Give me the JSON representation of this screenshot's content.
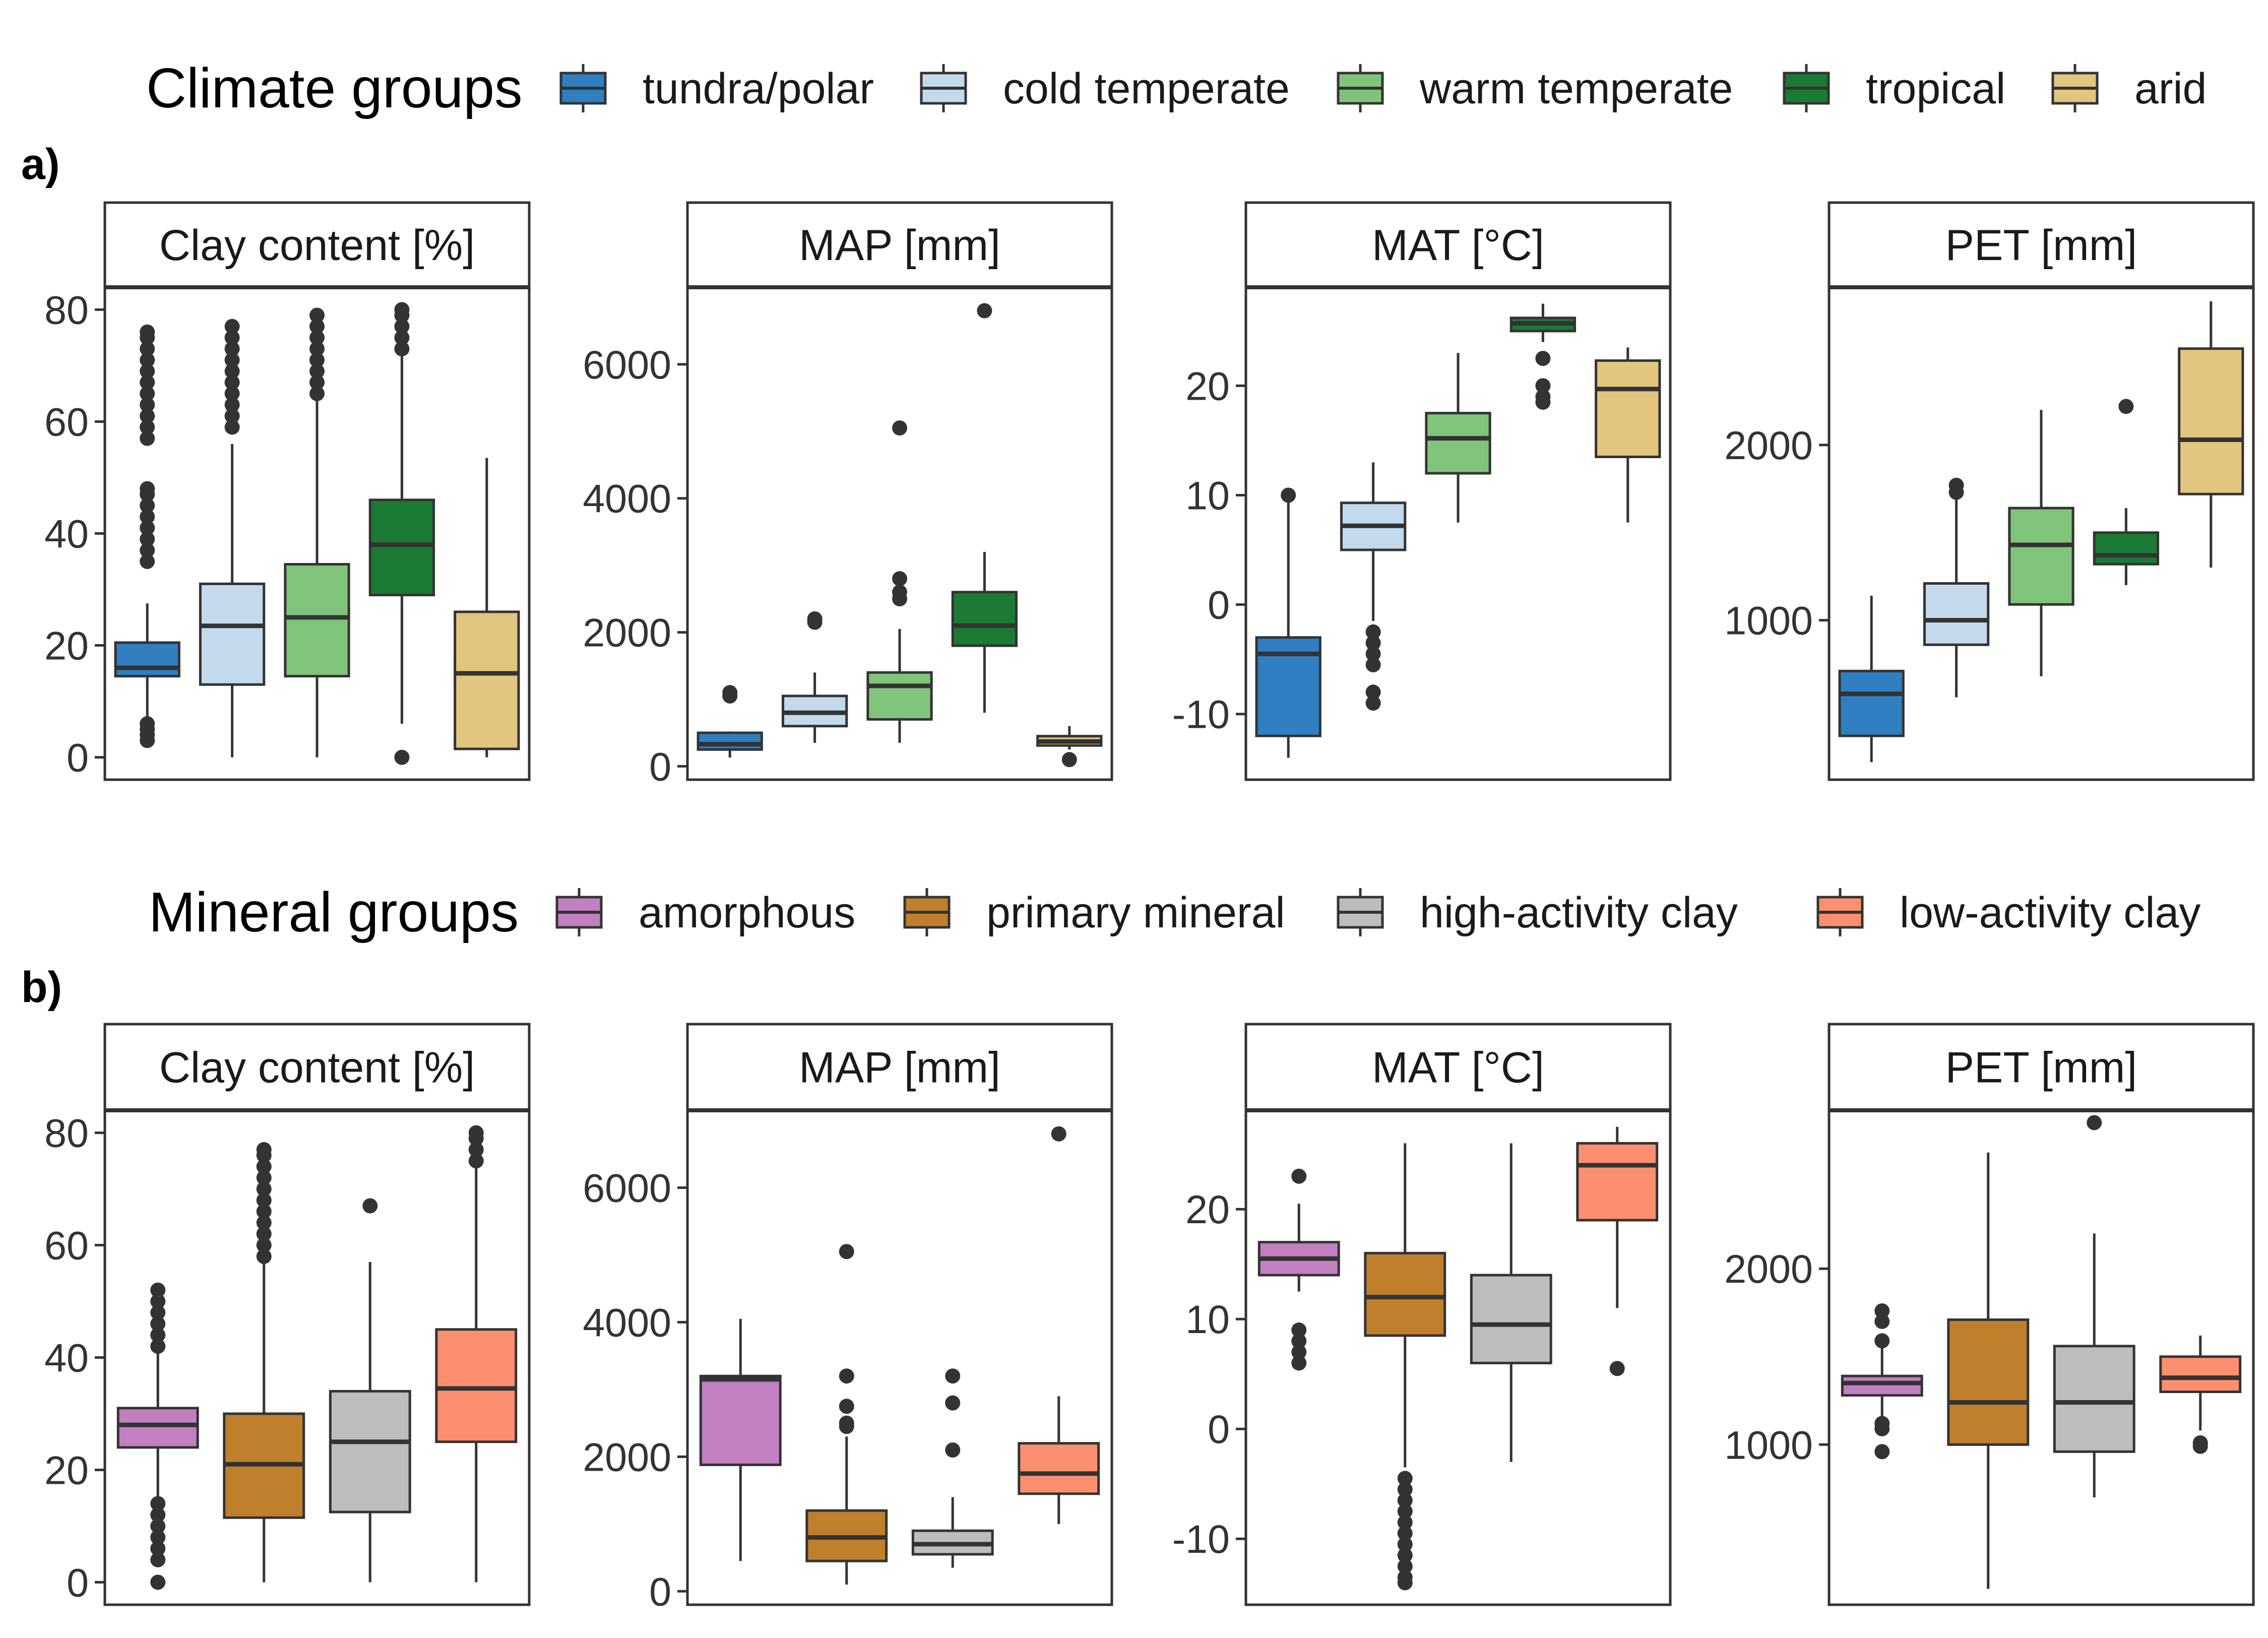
{
  "rows": [
    {
      "panel_tag": "a)",
      "legend_title": "Climate groups",
      "groups": [
        {
          "name": "tundra/polar",
          "color": "#2f7fc1"
        },
        {
          "name": "cold temperate",
          "color": "#c3daec"
        },
        {
          "name": "warm temperate",
          "color": "#80c47c"
        },
        {
          "name": "tropical",
          "color": "#1b7a34"
        },
        {
          "name": "arid",
          "color": "#e2c57f"
        }
      ]
    },
    {
      "panel_tag": "b)",
      "legend_title": "Mineral groups",
      "groups": [
        {
          "name": "amorphous",
          "color": "#c27fc1"
        },
        {
          "name": "primary mineral",
          "color": "#bf7f2c"
        },
        {
          "name": "high-activity clay",
          "color": "#bdbdbd"
        },
        {
          "name": "low-activity clay",
          "color": "#fc8f6f"
        }
      ]
    }
  ],
  "chart_data": [
    {
      "type": "boxplot",
      "row": 0,
      "title": "Clay content [%]",
      "ylim": [
        -4,
        84
      ],
      "yticks": [
        0,
        20,
        40,
        60,
        80
      ],
      "yticklabels": [
        "0",
        "20",
        "40",
        "60",
        "80"
      ],
      "categories": [
        "tundra/polar",
        "cold temperate",
        "warm temperate",
        "tropical",
        "arid"
      ],
      "boxes": [
        {
          "whisker_low": 7,
          "q1": 14.5,
          "median": 16,
          "q3": 20.5,
          "whisker_high": 27.5,
          "outliers": [
            3,
            4,
            5,
            6,
            35,
            37,
            39,
            41,
            43,
            45,
            47,
            48,
            57,
            59,
            61,
            63,
            65,
            67,
            69,
            71,
            73,
            75,
            76
          ]
        },
        {
          "whisker_low": 0,
          "q1": 13,
          "median": 23.5,
          "q3": 31,
          "whisker_high": 56,
          "outliers": [
            59,
            61,
            63,
            65,
            67,
            69,
            71,
            73,
            75,
            77
          ]
        },
        {
          "whisker_low": 0,
          "q1": 14.5,
          "median": 25,
          "q3": 34.5,
          "whisker_high": 64,
          "outliers": [
            65,
            67,
            69,
            71,
            73,
            75,
            77,
            79
          ]
        },
        {
          "whisker_low": 6,
          "q1": 29,
          "median": 38,
          "q3": 46,
          "whisker_high": 72,
          "outliers": [
            0,
            73,
            75,
            77,
            79,
            80
          ]
        },
        {
          "whisker_low": 0,
          "q1": 1.5,
          "median": 15,
          "q3": 26,
          "whisker_high": 53.5,
          "outliers": []
        }
      ]
    },
    {
      "type": "boxplot",
      "row": 0,
      "title": "MAP [mm]",
      "ylim": [
        -200,
        7150
      ],
      "yticks": [
        0,
        2000,
        4000,
        6000
      ],
      "yticklabels": [
        "0",
        "2000",
        "4000",
        "6000"
      ],
      "categories": [
        "tundra/polar",
        "cold temperate",
        "warm temperate",
        "tropical",
        "arid"
      ],
      "boxes": [
        {
          "whisker_low": 130,
          "q1": 250,
          "median": 330,
          "q3": 500,
          "whisker_high": 520,
          "outliers": [
            1050,
            1100
          ]
        },
        {
          "whisker_low": 350,
          "q1": 600,
          "median": 800,
          "q3": 1050,
          "whisker_high": 1400,
          "outliers": [
            2150,
            2200
          ]
        },
        {
          "whisker_low": 350,
          "q1": 700,
          "median": 1200,
          "q3": 1400,
          "whisker_high": 2050,
          "outliers": [
            2500,
            2600,
            2800,
            5050
          ]
        },
        {
          "whisker_low": 800,
          "q1": 1800,
          "median": 2100,
          "q3": 2600,
          "whisker_high": 3200,
          "outliers": [
            6800
          ]
        },
        {
          "whisker_low": 250,
          "q1": 310,
          "median": 370,
          "q3": 450,
          "whisker_high": 600,
          "outliers": [
            100
          ]
        }
      ]
    },
    {
      "type": "boxplot",
      "row": 0,
      "title": "MAT [°C]",
      "ylim": [
        -16,
        29
      ],
      "yticks": [
        -10,
        0,
        10,
        20
      ],
      "yticklabels": [
        "-10",
        "0",
        "10",
        "20"
      ],
      "categories": [
        "tundra/polar",
        "cold temperate",
        "warm temperate",
        "tropical",
        "arid"
      ],
      "boxes": [
        {
          "whisker_low": -14,
          "q1": -12,
          "median": -4.5,
          "q3": -3,
          "whisker_high": 10,
          "outliers": [
            10
          ]
        },
        {
          "whisker_low": -1.5,
          "q1": 5,
          "median": 7.2,
          "q3": 9.3,
          "whisker_high": 13,
          "outliers": [
            -2.5,
            -3.5,
            -4.5,
            -5.5,
            -8,
            -9
          ]
        },
        {
          "whisker_low": 7.5,
          "q1": 12,
          "median": 15.2,
          "q3": 17.5,
          "whisker_high": 23,
          "outliers": []
        },
        {
          "whisker_low": 24,
          "q1": 25,
          "median": 25.7,
          "q3": 26.2,
          "whisker_high": 27.5,
          "outliers": [
            22.5,
            20,
            19,
            18.5
          ]
        },
        {
          "whisker_low": 7.5,
          "q1": 13.5,
          "median": 19.7,
          "q3": 22.3,
          "whisker_high": 23.5,
          "outliers": []
        }
      ]
    },
    {
      "type": "boxplot",
      "row": 0,
      "title": "PET [mm]",
      "ylim": [
        90,
        2900
      ],
      "yticks": [
        1000,
        2000
      ],
      "yticklabels": [
        "1000",
        "2000"
      ],
      "categories": [
        "tundra/polar",
        "cold temperate",
        "warm temperate",
        "tropical",
        "arid"
      ],
      "boxes": [
        {
          "whisker_low": 190,
          "q1": 340,
          "median": 580,
          "q3": 710,
          "whisker_high": 1140,
          "outliers": []
        },
        {
          "whisker_low": 560,
          "q1": 860,
          "median": 1000,
          "q3": 1210,
          "whisker_high": 1700,
          "outliers": [
            1730,
            1770
          ]
        },
        {
          "whisker_low": 680,
          "q1": 1090,
          "median": 1430,
          "q3": 1640,
          "whisker_high": 2200,
          "outliers": []
        },
        {
          "whisker_low": 1200,
          "q1": 1320,
          "median": 1370,
          "q3": 1500,
          "whisker_high": 1640,
          "outliers": [
            2220
          ]
        },
        {
          "whisker_low": 1300,
          "q1": 1720,
          "median": 2030,
          "q3": 2550,
          "whisker_high": 2820,
          "outliers": []
        }
      ]
    },
    {
      "type": "boxplot",
      "row": 1,
      "title": "Clay content [%]",
      "ylim": [
        -4,
        84
      ],
      "yticks": [
        0,
        20,
        40,
        60,
        80
      ],
      "yticklabels": [
        "0",
        "20",
        "40",
        "60",
        "80"
      ],
      "categories": [
        "amorphous",
        "primary mineral",
        "high-activity clay",
        "low-activity clay"
      ],
      "boxes": [
        {
          "whisker_low": 14,
          "q1": 24,
          "median": 28,
          "q3": 31,
          "whisker_high": 41,
          "outliers": [
            0,
            4,
            6,
            8,
            10,
            12,
            14,
            42,
            44,
            46,
            48,
            50,
            52
          ]
        },
        {
          "whisker_low": 0,
          "q1": 11.5,
          "median": 21,
          "q3": 30,
          "whisker_high": 57,
          "outliers": [
            58,
            60,
            62,
            64,
            66,
            68,
            70,
            72,
            74,
            76,
            77
          ]
        },
        {
          "whisker_low": 0,
          "q1": 12.5,
          "median": 25,
          "q3": 34,
          "whisker_high": 57,
          "outliers": [
            67
          ]
        },
        {
          "whisker_low": 0,
          "q1": 25,
          "median": 34.5,
          "q3": 45,
          "whisker_high": 74,
          "outliers": [
            75,
            77,
            79,
            80
          ]
        }
      ]
    },
    {
      "type": "boxplot",
      "row": 1,
      "title": "MAP [mm]",
      "ylim": [
        -200,
        7150
      ],
      "yticks": [
        0,
        2000,
        4000,
        6000
      ],
      "yticklabels": [
        "0",
        "2000",
        "4000",
        "6000"
      ],
      "categories": [
        "amorphous",
        "primary mineral",
        "high-activity clay",
        "low-activity clay"
      ],
      "boxes": [
        {
          "whisker_low": 450,
          "q1": 1880,
          "median": 3150,
          "q3": 3200,
          "whisker_high": 4050,
          "outliers": []
        },
        {
          "whisker_low": 100,
          "q1": 450,
          "median": 800,
          "q3": 1200,
          "whisker_high": 2300,
          "outliers": [
            2450,
            2500,
            2750,
            3200,
            5050
          ]
        },
        {
          "whisker_low": 350,
          "q1": 550,
          "median": 700,
          "q3": 900,
          "whisker_high": 1400,
          "outliers": [
            2100,
            2800,
            3200
          ]
        },
        {
          "whisker_low": 1000,
          "q1": 1450,
          "median": 1750,
          "q3": 2200,
          "whisker_high": 2900,
          "outliers": [
            6800
          ]
        }
      ]
    },
    {
      "type": "boxplot",
      "row": 1,
      "title": "MAT [°C]",
      "ylim": [
        -16,
        29
      ],
      "yticks": [
        -10,
        0,
        10,
        20
      ],
      "yticklabels": [
        "-10",
        "0",
        "10",
        "20"
      ],
      "categories": [
        "amorphous",
        "primary mineral",
        "high-activity clay",
        "low-activity clay"
      ],
      "boxes": [
        {
          "whisker_low": 12.5,
          "q1": 14,
          "median": 15.5,
          "q3": 17,
          "whisker_high": 20.5,
          "outliers": [
            23,
            9,
            8,
            7,
            6
          ]
        },
        {
          "whisker_low": -3.5,
          "q1": 8.5,
          "median": 12,
          "q3": 16,
          "whisker_high": 26,
          "outliers": [
            -4.5,
            -5.5,
            -6.5,
            -7.5,
            -8.5,
            -9.5,
            -10.5,
            -11.5,
            -12.5,
            -13.5,
            -14
          ]
        },
        {
          "whisker_low": -3,
          "q1": 6,
          "median": 9.5,
          "q3": 14,
          "whisker_high": 26,
          "outliers": []
        },
        {
          "whisker_low": 11,
          "q1": 19,
          "median": 24,
          "q3": 26,
          "whisker_high": 27.5,
          "outliers": [
            5.5
          ]
        }
      ]
    },
    {
      "type": "boxplot",
      "row": 1,
      "title": "PET [mm]",
      "ylim": [
        90,
        2900
      ],
      "yticks": [
        1000,
        2000
      ],
      "yticklabels": [
        "1000",
        "2000"
      ],
      "categories": [
        "amorphous",
        "primary mineral",
        "high-activity clay",
        "low-activity clay"
      ],
      "boxes": [
        {
          "whisker_low": 1110,
          "q1": 1280,
          "median": 1350,
          "q3": 1390,
          "whisker_high": 1570,
          "outliers": [
            960,
            1090,
            1120,
            1590,
            1700,
            1760
          ]
        },
        {
          "whisker_low": 180,
          "q1": 1000,
          "median": 1240,
          "q3": 1710,
          "whisker_high": 2660,
          "outliers": []
        },
        {
          "whisker_low": 700,
          "q1": 960,
          "median": 1240,
          "q3": 1560,
          "whisker_high": 2200,
          "outliers": [
            2830
          ]
        },
        {
          "whisker_low": 1080,
          "q1": 1300,
          "median": 1380,
          "q3": 1500,
          "whisker_high": 1620,
          "outliers": [
            990,
            1010
          ]
        }
      ]
    }
  ]
}
